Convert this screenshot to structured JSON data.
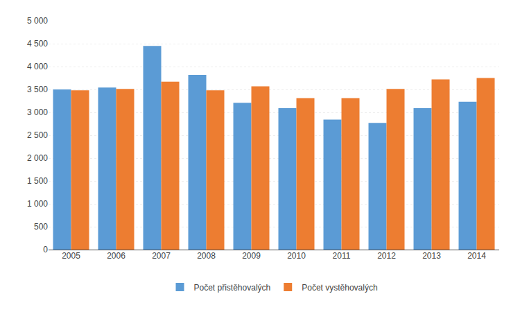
{
  "chart_data": {
    "type": "bar",
    "categories": [
      "2005",
      "2006",
      "2007",
      "2008",
      "2009",
      "2010",
      "2011",
      "2012",
      "2013",
      "2014"
    ],
    "series": [
      {
        "name": "Počet přistěhovalých",
        "color": "#5B9BD5",
        "values": [
          3500,
          3540,
          4450,
          3820,
          3210,
          3090,
          2840,
          2770,
          3090,
          3230
        ]
      },
      {
        "name": "Počet vystěhovalých",
        "color": "#ED7D31",
        "values": [
          3480,
          3510,
          3670,
          3480,
          3570,
          3310,
          3310,
          3510,
          3720,
          3750
        ]
      }
    ],
    "ylim": [
      0,
      5000
    ],
    "yticks": [
      0,
      500,
      {
        "value": 1000,
        "label": "1 000"
      },
      {
        "value": 1500,
        "label": "1 500"
      },
      {
        "value": 2000,
        "label": "2 000"
      },
      {
        "value": 2500,
        "label": "2 500"
      },
      {
        "value": 3000,
        "label": "3 000"
      },
      {
        "value": 3500,
        "label": "3 500"
      },
      {
        "value": 4000,
        "label": "4 000"
      },
      {
        "value": 4500,
        "label": "4 500"
      },
      {
        "value": 5000,
        "label": "5 000"
      }
    ],
    "grid": true,
    "legend": "bottom"
  }
}
